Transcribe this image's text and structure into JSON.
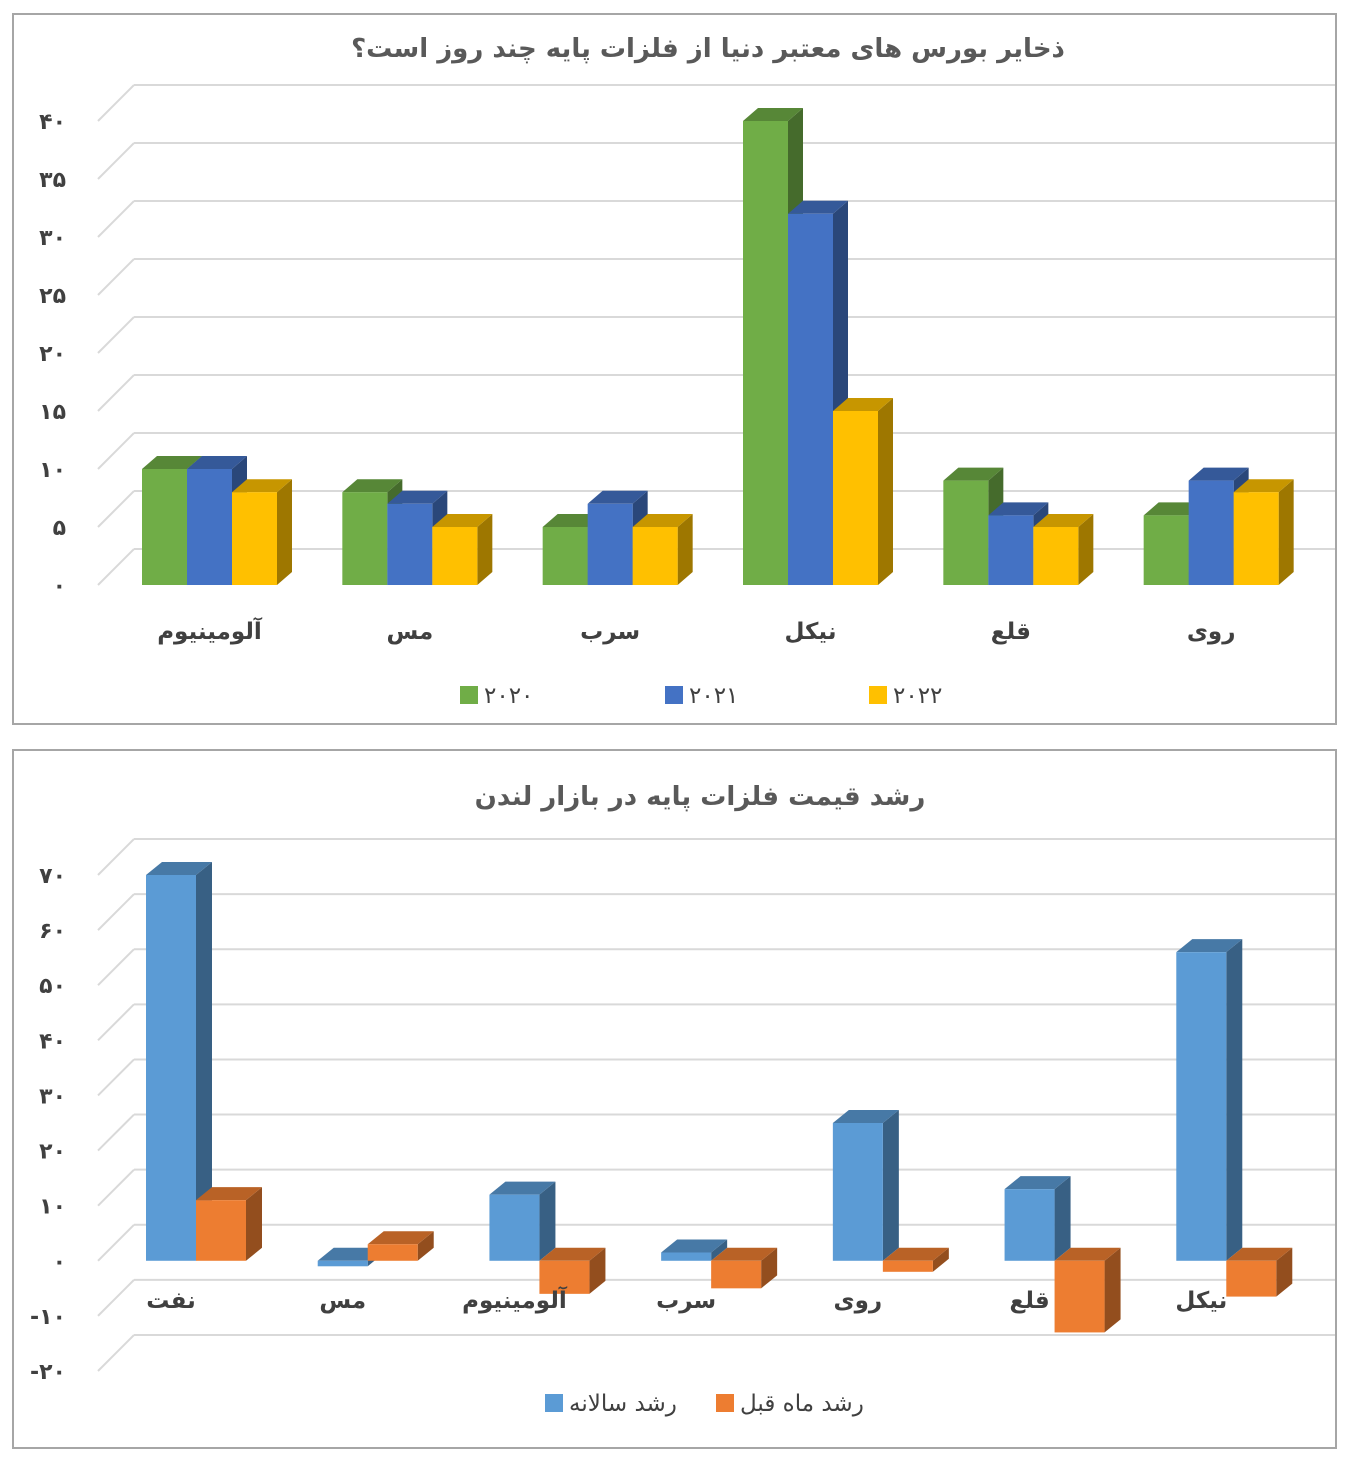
{
  "chart_data": [
    {
      "type": "bar",
      "title": "ذخایر بورس های معتبر دنیا از فلزات پایه چند روز است؟",
      "categories": [
        "آلومینیوم",
        "مس",
        "سرب",
        "نیکل",
        "قلع",
        "روی"
      ],
      "series": [
        {
          "name": "۲۰۲۰",
          "color": "#70ad47",
          "values": [
            10,
            8,
            5,
            40,
            9,
            6
          ]
        },
        {
          "name": "۲۰۲۱",
          "color": "#4472c4",
          "values": [
            10,
            7,
            7,
            32,
            6,
            9
          ]
        },
        {
          "name": "۲۰۲۲",
          "color": "#ffc000",
          "values": [
            8,
            5,
            5,
            15,
            5,
            8
          ]
        }
      ],
      "ylim": [
        0,
        40
      ],
      "yticks": [
        0,
        5,
        10,
        15,
        20,
        25,
        30,
        35,
        40
      ],
      "ytick_labels": [
        "۰",
        "۵",
        "۱۰",
        "۱۵",
        "۲۰",
        "۲۵",
        "۳۰",
        "۳۵",
        "۴۰"
      ],
      "legend_position": "bottom",
      "grid": true
    },
    {
      "type": "bar",
      "title": "رشد قیمت فلزات پایه در بازار لندن",
      "categories": [
        "نفت",
        "مس",
        "آلومینیوم",
        "سرب",
        "روی",
        "قلع",
        "نیکل"
      ],
      "series": [
        {
          "name": "رشد سالانه",
          "color": "#5b9bd5",
          "values": [
            70,
            -1,
            12,
            1.5,
            25,
            13,
            56
          ]
        },
        {
          "name": "رشد ماه قبل",
          "color": "#ed7d31",
          "values": [
            11,
            3,
            -6,
            -5,
            -2,
            -13,
            -6.5
          ]
        }
      ],
      "ylim": [
        -20,
        70
      ],
      "yticks": [
        -20,
        -10,
        0,
        10,
        20,
        30,
        40,
        50,
        60,
        70
      ],
      "ytick_labels": [
        "-۲۰",
        "-۱۰",
        "۰",
        "۱۰",
        "۲۰",
        "۳۰",
        "۴۰",
        "۵۰",
        "۶۰",
        "۷۰"
      ],
      "legend_position": "bottom",
      "grid": true
    }
  ]
}
